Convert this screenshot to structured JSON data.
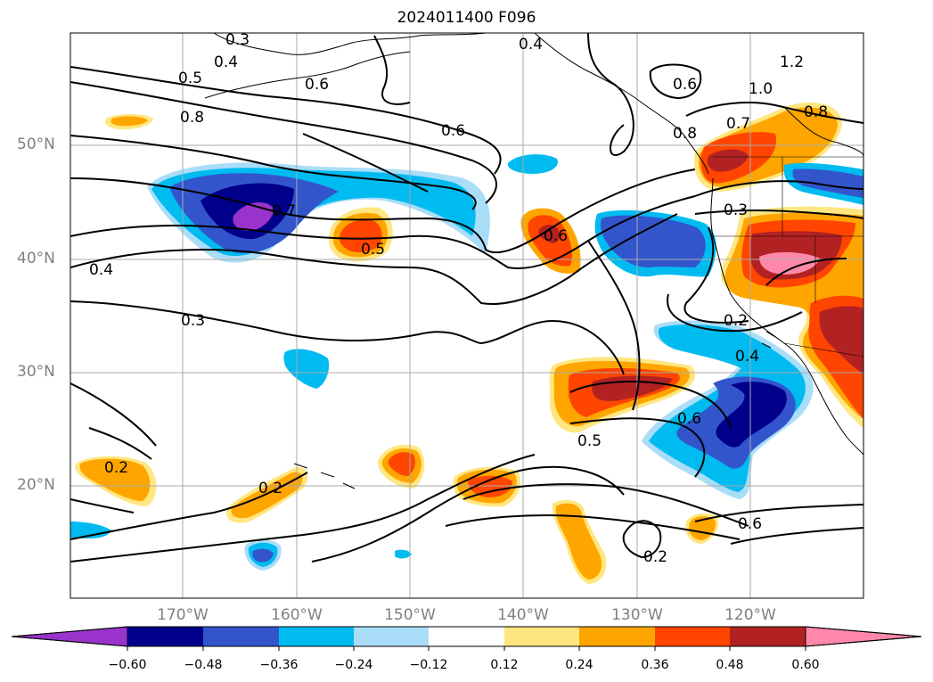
{
  "title": "2024011400 F096",
  "map": {
    "lat_labels": [
      "50°N",
      "40°N",
      "30°N",
      "20°N"
    ],
    "lon_labels": [
      "170°W",
      "160°W",
      "150°W",
      "140°W",
      "130°W",
      "120°W"
    ],
    "gridline_color": "#aaaaaa",
    "contour_labels": [
      "0.3",
      "0.4",
      "0.5",
      "0.6",
      "0.8",
      "0.4",
      "0.6",
      "0.6",
      "1.2",
      "1.0",
      "0.7",
      "0.8",
      "0.8",
      "0.7",
      "0.5",
      "0.6",
      "0.4",
      "0.3",
      "0.3",
      "0.2",
      "0.4",
      "0.6",
      "0.5",
      "0.2",
      "0.2",
      "0.6",
      "0.2"
    ]
  },
  "colorbar": {
    "ticks": [
      "−0.60",
      "−0.48",
      "−0.36",
      "−0.24",
      "−0.12",
      "0.12",
      "0.24",
      "0.36",
      "0.48",
      "0.60"
    ],
    "colors": [
      "#9933cc",
      "#00008b",
      "#3355cc",
      "#00bbf0",
      "#aaddf8",
      "#ffffff",
      "#ffe680",
      "#ffa500",
      "#ff4500",
      "#b22222",
      "#ff88aa"
    ]
  }
}
